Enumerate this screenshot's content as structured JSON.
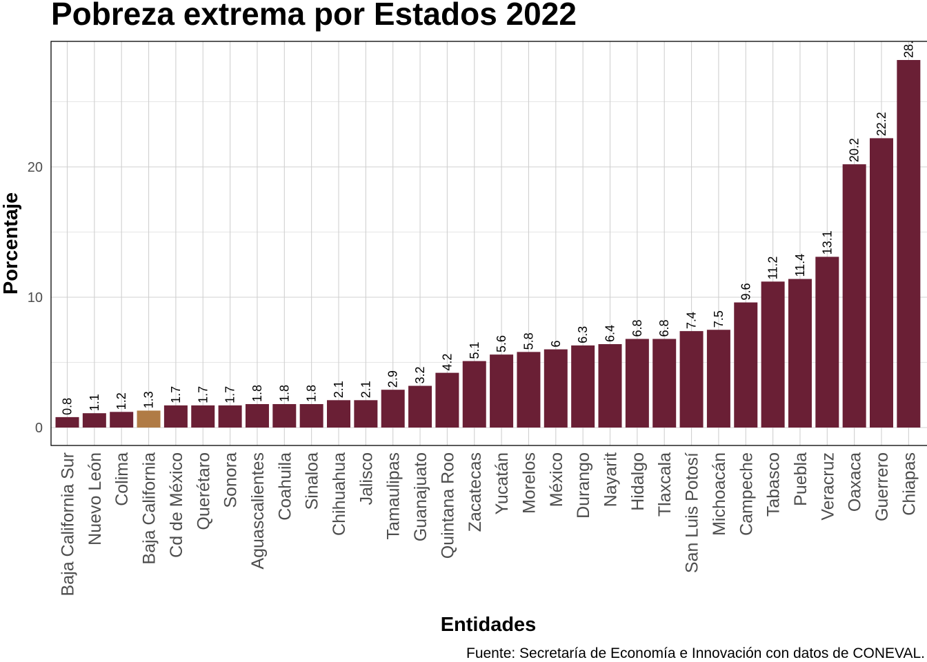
{
  "chart_data": {
    "type": "bar",
    "title": "Pobreza extrema por Estados 2022",
    "xlabel": "Entidades",
    "ylabel": "Porcentaje",
    "caption": "Fuente: Secretaría de Economía e Innovación con datos de CONEVAL.",
    "ylim": [
      -1.4,
      29.6
    ],
    "yticks": [
      0,
      10,
      20
    ],
    "ytick_labels": [
      "0",
      "10",
      "20"
    ],
    "grid": true,
    "legend": "none",
    "colors": {
      "default": "#6a1f35",
      "highlight": "#b07b45"
    },
    "highlight_category": "Baja California",
    "categories": [
      "Baja California Sur",
      "Nuevo León",
      "Colima",
      "Baja California",
      "Cd de México",
      "Querétaro",
      "Sonora",
      "Aguascalientes",
      "Coahuila",
      "Sinaloa",
      "Chihuahua",
      "Jalisco",
      "Tamaulipas",
      "Guanajuato",
      "Quintana Roo",
      "Zacatecas",
      "Yucatán",
      "Morelos",
      "México",
      "Durango",
      "Nayarit",
      "Hidalgo",
      "Tlaxcala",
      "San Luis Potosí",
      "Michoacán",
      "Campeche",
      "Tabasco",
      "Puebla",
      "Veracruz",
      "Oaxaca",
      "Guerrero",
      "Chiapas"
    ],
    "values": [
      0.8,
      1.1,
      1.2,
      1.3,
      1.7,
      1.7,
      1.7,
      1.8,
      1.8,
      1.8,
      2.1,
      2.1,
      2.9,
      3.2,
      4.2,
      5.1,
      5.6,
      5.8,
      6,
      6.3,
      6.4,
      6.8,
      6.8,
      7.4,
      7.5,
      9.6,
      11.2,
      11.4,
      13.1,
      20.2,
      22.2,
      28.2
    ],
    "data_labels": [
      "0.8",
      "1.1",
      "1.2",
      "1.3",
      "1.7",
      "1.7",
      "1.7",
      "1.8",
      "1.8",
      "1.8",
      "2.1",
      "2.1",
      "2.9",
      "3.2",
      "4.2",
      "5.1",
      "5.6",
      "5.8",
      "6",
      "6.3",
      "6.4",
      "6.8",
      "6.8",
      "7.4",
      "7.5",
      "9.6",
      "11.2",
      "11.4",
      "13.1",
      "20.2",
      "22.2",
      "28."
    ]
  }
}
